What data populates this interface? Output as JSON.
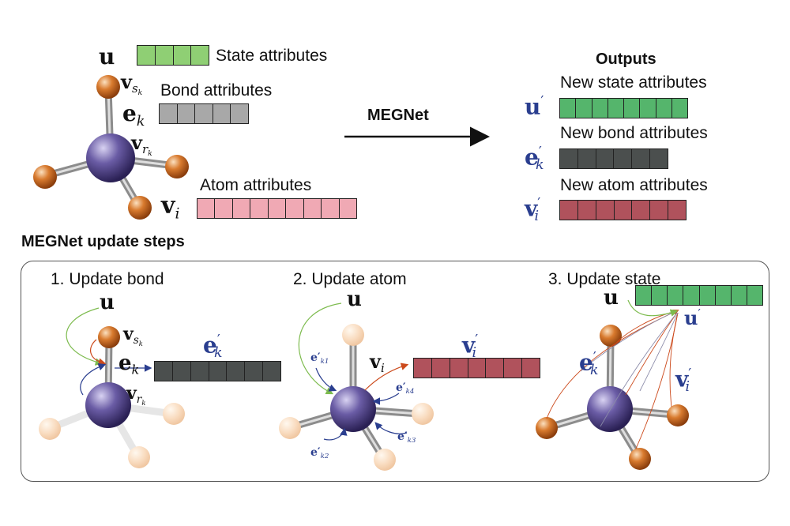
{
  "top": {
    "state_label": "State attributes",
    "bond_label": "Bond attributes",
    "atom_label": "Atom attributes",
    "sym_u": "u",
    "sym_vs": "v",
    "sym_vs_sub": "s",
    "sym_vs_subsub": "k",
    "sym_ek": "e",
    "sym_ek_sub": "k",
    "sym_vr": "v",
    "sym_vr_sub": "r",
    "sym_vr_subsub": "k",
    "sym_vi": "v",
    "sym_vi_sub": "i",
    "arrow_label": "MEGNet"
  },
  "outputs": {
    "title": "Outputs",
    "new_state": "New state attributes",
    "new_bond": "New bond attributes",
    "new_atom": "New atom attributes",
    "sym_u": "u",
    "sym_e": "e",
    "sym_e_sub": "k",
    "sym_v": "v",
    "sym_v_sub": "i",
    "prime": "′"
  },
  "steps": {
    "title": "MEGNet update steps",
    "step1": "1. Update bond",
    "step2": "2. Update atom",
    "step3": "3. Update state",
    "e_k1": "e′",
    "e_k1_sub": "k1",
    "e_k2": "e′",
    "e_k2_sub": "k2",
    "e_k3": "e′",
    "e_k3_sub": "k3",
    "e_k4": "e′",
    "e_k4_sub": "k4"
  },
  "colors": {
    "state_green": "#8fcf74",
    "bond_gray": "#a8a8a8",
    "atom_pink": "#f0a9b4",
    "new_state_green": "#55b56c",
    "new_bond_dark": "#4b4f4e",
    "new_atom_red": "#b0525c",
    "symbol_blue": "#2a3e8f"
  },
  "bars": {
    "state_cells": 4,
    "bond_cells": 5,
    "atom_cells": 9,
    "new_state_cells": 8,
    "new_bond_cells": 6,
    "new_atom_cells": 7
  }
}
